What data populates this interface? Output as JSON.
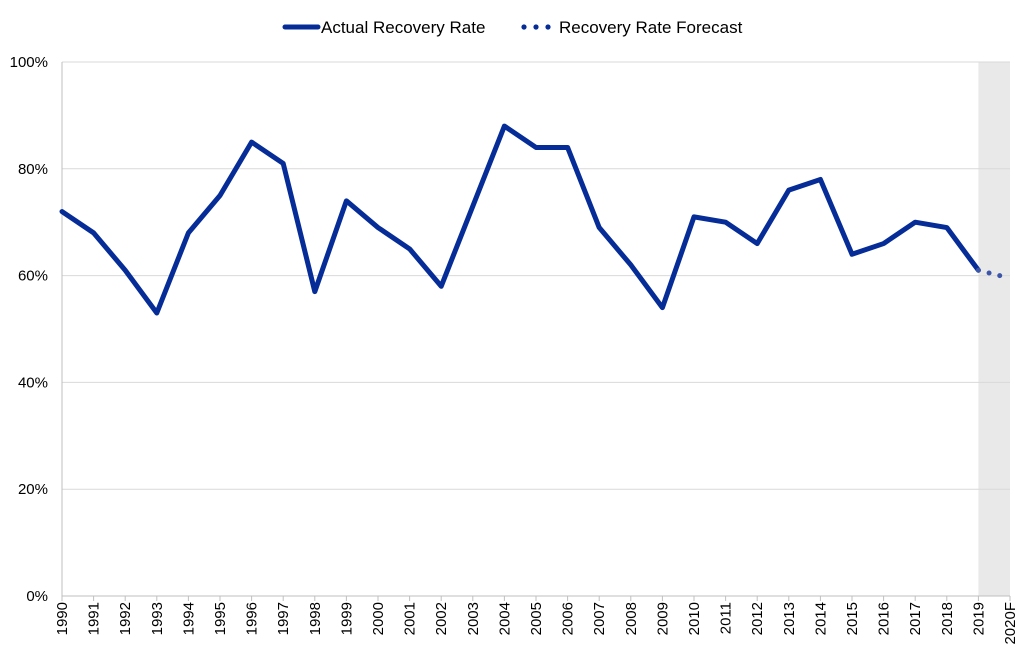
{
  "chart_data": {
    "type": "line",
    "title": "",
    "xlabel": "",
    "ylabel": "",
    "categories": [
      "1990",
      "1991",
      "1992",
      "1993",
      "1994",
      "1995",
      "1996",
      "1997",
      "1998",
      "1999",
      "2000",
      "2001",
      "2002",
      "2003",
      "2004",
      "2005",
      "2006",
      "2007",
      "2008",
      "2009",
      "2010",
      "2011",
      "2012",
      "2013",
      "2014",
      "2015",
      "2016",
      "2017",
      "2018",
      "2019",
      "2020F"
    ],
    "series": [
      {
        "name": "Actual Recovery Rate",
        "style": "solid",
        "x": [
          "1990",
          "1991",
          "1992",
          "1993",
          "1994",
          "1995",
          "1996",
          "1997",
          "1998",
          "1999",
          "2000",
          "2001",
          "2002",
          "2003",
          "2004",
          "2005",
          "2006",
          "2007",
          "2008",
          "2009",
          "2010",
          "2011",
          "2012",
          "2013",
          "2014",
          "2015",
          "2016",
          "2017",
          "2018",
          "2019"
        ],
        "values": [
          72,
          68,
          61,
          53,
          68,
          75,
          85,
          81,
          57,
          74,
          69,
          65,
          58,
          73,
          88,
          84,
          84,
          69,
          62,
          54,
          71,
          70,
          66,
          76,
          78,
          64,
          66,
          70,
          69,
          61
        ]
      },
      {
        "name": "Recovery Rate Forecast",
        "style": "dotted",
        "x": [
          "2019",
          "2020F"
        ],
        "values": [
          61,
          59.5
        ]
      }
    ],
    "ylim": [
      0,
      100
    ],
    "yticks": [
      "0%",
      "20%",
      "40%",
      "60%",
      "80%",
      "100%"
    ],
    "ytick_values": [
      0,
      20,
      40,
      60,
      80,
      100
    ],
    "grid": "horizontal",
    "legend": "top-center",
    "shaded_region": {
      "from": "2019",
      "to": "2020F",
      "color": "#e9e9e9"
    },
    "colors": {
      "line": "#052c97",
      "forecast": "#3b56a8",
      "grid": "#d9d9d9",
      "axis": "#bfbfbf"
    }
  }
}
